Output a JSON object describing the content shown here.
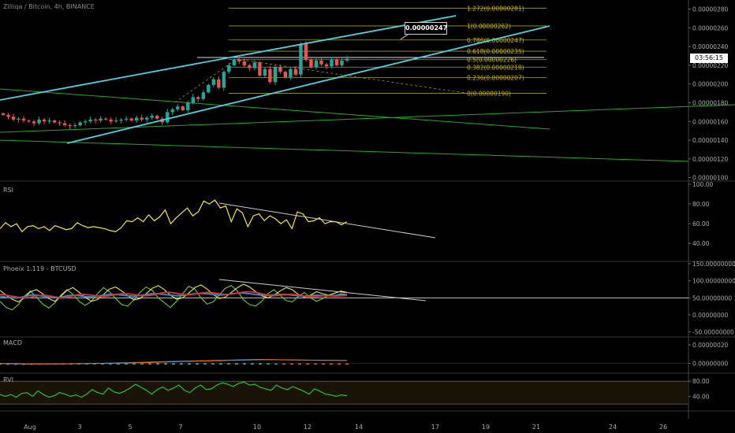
{
  "header": {
    "title": "Zilliqa / Bitcoin, 4h, BINANCE",
    "rsi_label": "RSI",
    "phoenix_label": "Phoeix 1.119 - BTCUSD",
    "macd_label": "MACD",
    "rvi_label": "RVI",
    "last_price_tag": "03:56:15",
    "callout_price": "0.00000247"
  },
  "colors": {
    "background": "#000000",
    "up_candle": "#26a69a",
    "down_candle": "#ef5350",
    "channel": "#4dd0e1",
    "trend_green": "#22aa22",
    "fib": "#a0a020",
    "fib_label": "#c8b400",
    "rsi_line": "#f5e642",
    "phoenix_yellow": "#f5e642",
    "phoenix_green": "#6acb3c",
    "phoenix_blue": "#2f8fd8",
    "phoenix_red": "#d33",
    "rvi_line": "#33bb33",
    "macd_line": "#2a7ff0",
    "signal_line": "#ff6d00"
  },
  "chart_data": [
    {
      "type": "candlestick",
      "title": "Zilliqa / Bitcoin, 4h, BINANCE",
      "x_ticks": [
        "Aug",
        "3",
        "5",
        "7",
        "10",
        "12",
        "14",
        "17",
        "19",
        "21",
        "24",
        "26"
      ],
      "y_ticks": [
        "0.00000280",
        "0.00000260",
        "0.00000240",
        "0.00000220",
        "0.00000200",
        "0.00000180",
        "0.00000160",
        "0.00000140",
        "0.00000120",
        "0.00000100"
      ],
      "ylim": [
        9.8e-07,
        2.88e-06
      ],
      "series": [
        {
          "name": "close",
          "values": [
            1.67e-06,
            1.65e-06,
            1.62e-06,
            1.63e-06,
            1.61e-06,
            1.6e-06,
            1.58e-06,
            1.62e-06,
            1.6e-06,
            1.61e-06,
            1.59e-06,
            1.58e-06,
            1.56e-06,
            1.55e-06,
            1.56e-06,
            1.59e-06,
            1.6e-06,
            1.62e-06,
            1.61e-06,
            1.63e-06,
            1.62e-06,
            1.6e-06,
            1.61e-06,
            1.62e-06,
            1.63e-06,
            1.61e-06,
            1.64e-06,
            1.62e-06,
            1.64e-06,
            1.66e-06,
            1.63e-06,
            1.59e-06,
            1.7e-06,
            1.73e-06,
            1.76e-06,
            1.72e-06,
            1.8e-06,
            1.86e-06,
            1.84e-06,
            1.91e-06,
            1.99e-06,
            2.05e-06,
            1.96e-06,
            2.13e-06,
            2.2e-06,
            2.26e-06,
            2.24e-06,
            2.2e-06,
            2.17e-06,
            2.23e-06,
            2.09e-06,
            2.16e-06,
            2.02e-06,
            2.18e-06,
            2.13e-06,
            2.07e-06,
            2.16e-06,
            2.1e-06,
            2.43e-06,
            2.26e-06,
            2.18e-06,
            2.25e-06,
            2.21e-06,
            2.19e-06,
            2.26e-06,
            2.2e-06,
            2.25e-06,
            2.27e-06
          ]
        }
      ],
      "price_labels": {
        "current": "03:56:15",
        "callout": "0.00000247"
      },
      "fibonacci": [
        {
          "label": "1.272(0.00000281)",
          "value": 2.81e-06
        },
        {
          "label": "1(0.00000262)",
          "value": 2.62e-06
        },
        {
          "label": "0.786(0.00000247)",
          "value": 2.47e-06
        },
        {
          "label": "0.618(0.00000235)",
          "value": 2.35e-06
        },
        {
          "label": "0.5(0.00000226)",
          "value": 2.26e-06
        },
        {
          "label": "0.382(0.00000218)",
          "value": 2.18e-06
        },
        {
          "label": "0.236(0.00000207)",
          "value": 2.07e-06
        },
        {
          "label": "0(0.00000190)",
          "value": 1.9e-06
        }
      ]
    },
    {
      "type": "line",
      "title": "RSI",
      "y_ticks": [
        "100.00",
        "80.00",
        "60.00",
        "40.00"
      ],
      "ylim": [
        25,
        100
      ],
      "series": [
        {
          "name": "RSI",
          "values": [
            55,
            61,
            57,
            60,
            52,
            57,
            58,
            55,
            57,
            53,
            58,
            56,
            54,
            55,
            61,
            58,
            56,
            57,
            56,
            55,
            53,
            52,
            56,
            63,
            62,
            66,
            62,
            69,
            63,
            67,
            74,
            60,
            66,
            71,
            76,
            68,
            72,
            83,
            80,
            84,
            76,
            78,
            62,
            75,
            71,
            57,
            68,
            70,
            63,
            68,
            65,
            60,
            64,
            55,
            72,
            70,
            62,
            63,
            66,
            60,
            62,
            62,
            59,
            62
          ]
        }
      ]
    },
    {
      "type": "line",
      "title": "Phoeix 1.119 - BTCUSD",
      "y_ticks": [
        "150.00000000",
        "100.00000000",
        "50.00000000",
        "0.00000000",
        "-50.00000000"
      ],
      "ylim": [
        -60,
        150
      ],
      "series": [
        {
          "name": "yellow",
          "values": [
            72,
            58,
            46,
            38,
            50,
            68,
            74,
            62,
            48,
            40,
            55,
            72,
            80,
            66,
            52,
            40,
            45,
            60,
            76,
            82,
            70,
            56,
            44,
            48,
            62,
            78,
            86,
            74,
            58,
            46,
            50,
            64,
            80,
            88,
            76,
            60,
            48,
            52,
            66,
            80,
            90,
            82,
            68,
            56,
            50,
            58,
            70,
            80,
            74,
            60,
            52,
            58,
            68,
            62,
            58,
            64,
            70,
            66
          ]
        },
        {
          "name": "green",
          "values": [
            40,
            22,
            15,
            30,
            55,
            70,
            52,
            32,
            20,
            35,
            58,
            74,
            60,
            40,
            28,
            40,
            62,
            80,
            68,
            48,
            30,
            26,
            44,
            66,
            82,
            72,
            50,
            36,
            22,
            40,
            62,
            84,
            76,
            50,
            32,
            38,
            58,
            78,
            86,
            70,
            44,
            30,
            26,
            40,
            62,
            74,
            58,
            42,
            38,
            54,
            66,
            50,
            40,
            48,
            58,
            56,
            62,
            60
          ]
        },
        {
          "name": "blue",
          "values": [
            55,
            52,
            50,
            50,
            54,
            58,
            58,
            55,
            52,
            50,
            52,
            56,
            58,
            56,
            54,
            53,
            55,
            58,
            60,
            60,
            58,
            56,
            55,
            57,
            60,
            62,
            62,
            60,
            58,
            56,
            57,
            60,
            62,
            63,
            62,
            60,
            58,
            59,
            62,
            64,
            64,
            62,
            60,
            58,
            58,
            59,
            60,
            60,
            58,
            56,
            55,
            56,
            58,
            57,
            56,
            57,
            58,
            58
          ]
        },
        {
          "name": "red",
          "values": [
            60,
            58,
            55,
            52,
            50,
            52,
            56,
            58,
            56,
            53,
            50,
            52,
            56,
            60,
            60,
            58,
            55,
            54,
            56,
            60,
            62,
            62,
            60,
            57,
            56,
            58,
            62,
            66,
            66,
            63,
            60,
            59,
            61,
            64,
            66,
            65,
            62,
            60,
            61,
            64,
            67,
            68,
            66,
            62,
            58,
            56,
            58,
            60,
            60,
            58,
            55,
            53,
            54,
            56,
            56,
            55,
            56,
            57
          ]
        }
      ]
    },
    {
      "type": "bar",
      "title": "MACD",
      "y_ticks": [
        "0.00000020",
        "0.00000000"
      ],
      "ylim": [
        -8e-08,
        2.6e-07
      ],
      "series": [
        {
          "name": "MACD",
          "values": [
            -2e-09,
            -4e-09,
            -6e-09,
            -8e-09,
            -8e-09,
            -6e-09,
            -5e-09,
            -5e-09,
            -4e-09,
            -3e-09,
            -2e-09,
            -1e-09,
            0,
            2e-09,
            4e-09,
            6e-09,
            8e-09,
            1e-08,
            1.2e-08,
            1.5e-08,
            1.8e-08,
            2e-08,
            2.2e-08,
            2.4e-08,
            2.6e-08,
            2.8e-08,
            3e-08,
            3.2e-08,
            3.4e-08,
            3.6e-08,
            3.8e-08,
            4e-08,
            4.2e-08,
            4.3e-08,
            4.2e-08,
            4e-08,
            3.8e-08,
            3.7e-08,
            3.6e-08,
            3.5e-08,
            3.4e-08,
            3.3e-08,
            3.2e-08,
            3.1e-08,
            3e-08
          ]
        },
        {
          "name": "signal",
          "values": [
            0,
            -1e-09,
            -2e-09,
            -4e-09,
            -5e-09,
            -5e-09,
            -5e-09,
            -5e-09,
            -4e-09,
            -4e-09,
            -3e-09,
            -2e-09,
            -1e-09,
            0,
            1e-09,
            3e-09,
            4e-09,
            6e-09,
            8e-09,
            1e-08,
            1.3e-08,
            1.5e-08,
            1.8e-08,
            2e-08,
            2.2e-08,
            2.4e-08,
            2.6e-08,
            2.8e-08,
            3e-08,
            3.2e-08,
            3.4e-08,
            3.6e-08,
            3.8e-08,
            3.9e-08,
            4e-08,
            4e-08,
            3.9e-08,
            3.8e-08,
            3.7e-08,
            3.6e-08,
            3.5e-08,
            3.4e-08,
            3.3e-08,
            3.2e-08,
            3.1e-08
          ]
        }
      ]
    },
    {
      "type": "line",
      "title": "RVI",
      "y_ticks": [
        "80.00",
        "40.00"
      ],
      "ylim": [
        10,
        95
      ],
      "series": [
        {
          "name": "RVI",
          "values": [
            45,
            40,
            45,
            38,
            48,
            50,
            40,
            55,
            45,
            38,
            42,
            50,
            46,
            40,
            44,
            38,
            46,
            58,
            50,
            46,
            62,
            52,
            48,
            54,
            62,
            72,
            64,
            56,
            46,
            58,
            65,
            56,
            62,
            70,
            56,
            50,
            62,
            70,
            58,
            60,
            70,
            76,
            72,
            66,
            74,
            78,
            70,
            72,
            64,
            60,
            56,
            70,
            62,
            58,
            66,
            60,
            54,
            46,
            60,
            54,
            46,
            44,
            40,
            44,
            42
          ]
        }
      ]
    }
  ]
}
